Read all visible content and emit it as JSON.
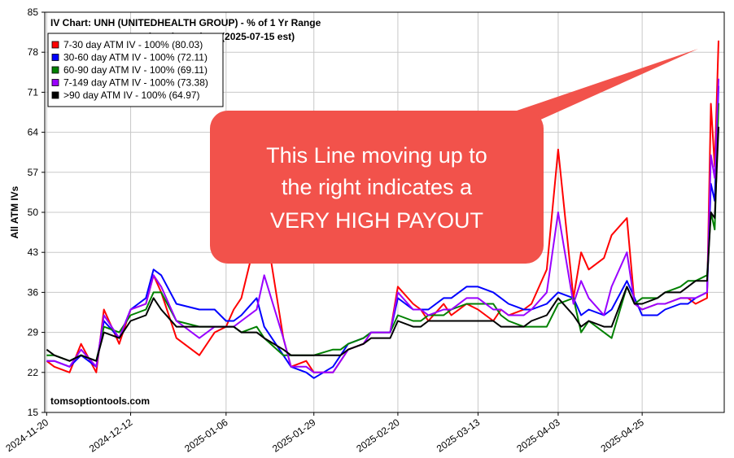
{
  "chart_data": {
    "type": "line",
    "title": "IV Chart: UNH (UNITEDHEALTH GROUP)  - % of 1 Yr Range",
    "subtitle": "Next earnings in 61 days  (2025-07-15 est)",
    "ylabel": "All ATM IVs",
    "xlabel": "",
    "ylim": [
      15,
      85
    ],
    "yticks": [
      "15",
      "22",
      "29",
      "36",
      "43",
      "50",
      "57",
      "64",
      "71",
      "78",
      "85"
    ],
    "xticks": [
      "2024-11-20",
      "2024-12-12",
      "2025-01-06",
      "2025-01-29",
      "2025-02-20",
      "2025-03-13",
      "2025-04-03",
      "2025-04-25"
    ],
    "grid": true,
    "legend_position": "top-left",
    "watermark": "tomsoptiontools.com",
    "x": [
      "2024-11-20",
      "2024-11-22",
      "2024-11-26",
      "2024-11-29",
      "2024-12-03",
      "2024-12-05",
      "2024-12-09",
      "2024-12-12",
      "2024-12-16",
      "2024-12-18",
      "2024-12-20",
      "2024-12-24",
      "2024-12-30",
      "2025-01-03",
      "2025-01-06",
      "2025-01-08",
      "2025-01-10",
      "2025-01-14",
      "2025-01-16",
      "2025-01-21",
      "2025-01-23",
      "2025-01-27",
      "2025-01-29",
      "2025-02-03",
      "2025-02-05",
      "2025-02-07",
      "2025-02-11",
      "2025-02-13",
      "2025-02-18",
      "2025-02-20",
      "2025-02-24",
      "2025-02-26",
      "2025-02-28",
      "2025-03-04",
      "2025-03-06",
      "2025-03-10",
      "2025-03-13",
      "2025-03-17",
      "2025-03-19",
      "2025-03-21",
      "2025-03-25",
      "2025-03-27",
      "2025-03-31",
      "2025-04-03",
      "2025-04-07",
      "2025-04-09",
      "2025-04-11",
      "2025-04-15",
      "2025-04-17",
      "2025-04-21",
      "2025-04-23",
      "2025-04-25",
      "2025-04-29",
      "2025-05-01",
      "2025-05-05",
      "2025-05-07",
      "2025-05-09",
      "2025-05-12",
      "2025-05-13",
      "2025-05-14",
      "2025-05-15"
    ],
    "series": [
      {
        "name": "7-30 day ATM IV - 100% (80.03)",
        "color": "#ff0000",
        "values": [
          24,
          23,
          22,
          27,
          22,
          33,
          27,
          33,
          34,
          39,
          36,
          28,
          25,
          29,
          30,
          33,
          35,
          46,
          49,
          28,
          23,
          24,
          22,
          22,
          24,
          26,
          27,
          29,
          29,
          37,
          34,
          33,
          31,
          34,
          32,
          34,
          33,
          31,
          33,
          32,
          33,
          34,
          40,
          61,
          35,
          43,
          40,
          42,
          46,
          49,
          34,
          33,
          34,
          34,
          35,
          35,
          34,
          35,
          69,
          58,
          80.03
        ]
      },
      {
        "name": "30-60 day ATM IV - 100% (72.11)",
        "color": "#0000ff",
        "values": [
          24,
          24,
          23,
          25,
          23,
          31,
          28,
          33,
          35,
          40,
          39,
          34,
          33,
          33,
          31,
          31,
          32,
          35,
          30,
          25,
          23,
          22,
          21,
          23,
          25,
          27,
          28,
          29,
          29,
          35,
          33,
          33,
          33,
          35,
          35,
          37,
          37,
          36,
          35,
          34,
          33,
          33,
          34,
          36,
          35,
          32,
          33,
          32,
          33,
          38,
          35,
          32,
          32,
          33,
          34,
          34,
          35,
          36,
          55,
          52,
          72.11
        ]
      },
      {
        "name": "60-90 day ATM IV - 100% (69.11)",
        "color": "#008000",
        "values": [
          25,
          25,
          24,
          25,
          24,
          30,
          29,
          32,
          33,
          36,
          36,
          31,
          30,
          30,
          30,
          30,
          29,
          30,
          28,
          25,
          25,
          25,
          25,
          26,
          26,
          27,
          28,
          29,
          29,
          32,
          31,
          31,
          32,
          32,
          33,
          34,
          34,
          34,
          32,
          31,
          30,
          30,
          30,
          34,
          35,
          29,
          31,
          29,
          28,
          37,
          34,
          35,
          35,
          36,
          37,
          38,
          38,
          39,
          50,
          47,
          69.11
        ]
      },
      {
        "name": "7-149 day ATM IV - 100% (73.38)",
        "color": "#9900ff",
        "values": [
          24,
          24,
          23,
          26,
          23,
          32,
          28,
          33,
          34,
          39,
          37,
          31,
          28,
          30,
          30,
          30,
          31,
          33,
          39,
          28,
          23,
          23,
          22,
          22,
          24,
          26,
          27,
          29,
          29,
          36,
          33,
          33,
          32,
          33,
          33,
          35,
          35,
          33,
          33,
          32,
          32,
          33,
          36,
          50,
          34,
          38,
          35,
          32,
          37,
          43,
          34,
          33,
          34,
          34,
          35,
          35,
          35,
          36,
          60,
          56,
          73.38
        ]
      },
      {
        "name": ">90 day ATM IV - 100% (64.97)",
        "color": "#000000",
        "values": [
          26,
          25,
          24,
          25,
          24,
          29,
          28,
          31,
          32,
          35,
          33,
          30,
          30,
          30,
          30,
          30,
          29,
          29,
          28,
          26,
          25,
          25,
          25,
          25,
          25,
          26,
          27,
          28,
          28,
          31,
          30,
          30,
          31,
          31,
          31,
          31,
          31,
          31,
          30,
          30,
          30,
          31,
          32,
          35,
          32,
          30,
          31,
          30,
          30,
          37,
          34,
          34,
          35,
          36,
          36,
          37,
          38,
          38,
          50,
          49,
          64.97
        ]
      }
    ]
  },
  "callout": {
    "lines": [
      "This Line moving up to",
      "the right indicates a",
      "VERY HIGH PAYOUT"
    ],
    "color": "#f2524b"
  }
}
